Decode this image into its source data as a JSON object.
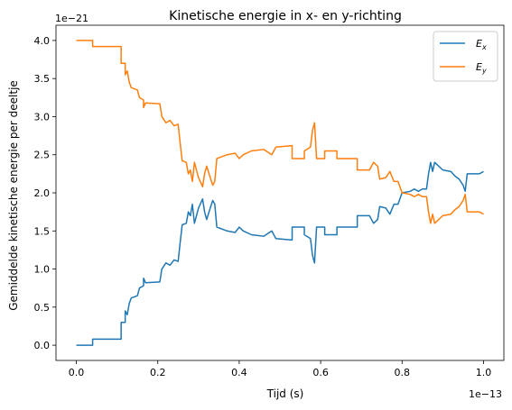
{
  "chart_data": {
    "type": "line",
    "title": "Kinetische energie in x- en y-richting",
    "xlabel": "Tijd (s)",
    "ylabel": "Gemiddelde kinetische energie per deeltje",
    "x_offset_label": "1e−13",
    "y_offset_label": "1e−21",
    "x_scale": 1e-13,
    "y_scale": 1e-21,
    "xlim": [
      -0.05,
      1.05
    ],
    "ylim": [
      -0.2,
      4.2
    ],
    "x_ticks": [
      0.0,
      0.2,
      0.4,
      0.6,
      0.8,
      1.0
    ],
    "x_tick_labels": [
      "0.0",
      "0.2",
      "0.4",
      "0.6",
      "0.8",
      "1.0"
    ],
    "y_ticks": [
      0.0,
      0.5,
      1.0,
      1.5,
      2.0,
      2.5,
      3.0,
      3.5,
      4.0
    ],
    "y_tick_labels": [
      "0.0",
      "0.5",
      "1.0",
      "1.5",
      "2.0",
      "2.5",
      "3.0",
      "3.5",
      "4.0"
    ],
    "grid": false,
    "legend_position": "top-right",
    "series": [
      {
        "name": "E_x",
        "legend_base": "E",
        "legend_sub": "x",
        "color": "#1f77b4",
        "points": [
          [
            0.0,
            0.0
          ],
          [
            0.04,
            0.0
          ],
          [
            0.04,
            0.08
          ],
          [
            0.11,
            0.08
          ],
          [
            0.11,
            0.3
          ],
          [
            0.12,
            0.3
          ],
          [
            0.12,
            0.45
          ],
          [
            0.125,
            0.4
          ],
          [
            0.13,
            0.55
          ],
          [
            0.135,
            0.62
          ],
          [
            0.15,
            0.65
          ],
          [
            0.155,
            0.75
          ],
          [
            0.165,
            0.78
          ],
          [
            0.165,
            0.88
          ],
          [
            0.17,
            0.82
          ],
          [
            0.205,
            0.83
          ],
          [
            0.21,
            1.0
          ],
          [
            0.22,
            1.08
          ],
          [
            0.23,
            1.05
          ],
          [
            0.24,
            1.12
          ],
          [
            0.25,
            1.1
          ],
          [
            0.255,
            1.35
          ],
          [
            0.26,
            1.58
          ],
          [
            0.27,
            1.6
          ],
          [
            0.275,
            1.75
          ],
          [
            0.28,
            1.7
          ],
          [
            0.285,
            1.85
          ],
          [
            0.29,
            1.6
          ],
          [
            0.3,
            1.8
          ],
          [
            0.31,
            1.92
          ],
          [
            0.315,
            1.75
          ],
          [
            0.32,
            1.65
          ],
          [
            0.33,
            1.82
          ],
          [
            0.335,
            1.9
          ],
          [
            0.34,
            1.85
          ],
          [
            0.345,
            1.55
          ],
          [
            0.36,
            1.52
          ],
          [
            0.37,
            1.5
          ],
          [
            0.39,
            1.48
          ],
          [
            0.4,
            1.55
          ],
          [
            0.41,
            1.5
          ],
          [
            0.43,
            1.45
          ],
          [
            0.46,
            1.43
          ],
          [
            0.48,
            1.5
          ],
          [
            0.49,
            1.4
          ],
          [
            0.53,
            1.38
          ],
          [
            0.53,
            1.55
          ],
          [
            0.56,
            1.55
          ],
          [
            0.56,
            1.45
          ],
          [
            0.575,
            1.4
          ],
          [
            0.58,
            1.18
          ],
          [
            0.585,
            1.08
          ],
          [
            0.59,
            1.55
          ],
          [
            0.61,
            1.55
          ],
          [
            0.61,
            1.45
          ],
          [
            0.64,
            1.45
          ],
          [
            0.64,
            1.55
          ],
          [
            0.69,
            1.55
          ],
          [
            0.69,
            1.7
          ],
          [
            0.72,
            1.7
          ],
          [
            0.73,
            1.6
          ],
          [
            0.74,
            1.65
          ],
          [
            0.745,
            1.82
          ],
          [
            0.76,
            1.8
          ],
          [
            0.77,
            1.72
          ],
          [
            0.78,
            1.85
          ],
          [
            0.79,
            1.85
          ],
          [
            0.8,
            2.0
          ],
          [
            0.82,
            2.02
          ],
          [
            0.83,
            2.05
          ],
          [
            0.84,
            2.02
          ],
          [
            0.85,
            2.05
          ],
          [
            0.86,
            2.05
          ],
          [
            0.865,
            2.25
          ],
          [
            0.87,
            2.4
          ],
          [
            0.875,
            2.28
          ],
          [
            0.88,
            2.4
          ],
          [
            0.9,
            2.3
          ],
          [
            0.92,
            2.28
          ],
          [
            0.93,
            2.22
          ],
          [
            0.94,
            2.18
          ],
          [
            0.95,
            2.1
          ],
          [
            0.955,
            2.02
          ],
          [
            0.96,
            2.25
          ],
          [
            0.99,
            2.25
          ],
          [
            1.0,
            2.28
          ]
        ]
      },
      {
        "name": "E_y",
        "legend_base": "E",
        "legend_sub": "y",
        "color": "#ff7f0e",
        "points": [
          [
            0.0,
            4.0
          ],
          [
            0.04,
            4.0
          ],
          [
            0.04,
            3.92
          ],
          [
            0.11,
            3.92
          ],
          [
            0.11,
            3.7
          ],
          [
            0.12,
            3.7
          ],
          [
            0.12,
            3.55
          ],
          [
            0.125,
            3.6
          ],
          [
            0.13,
            3.45
          ],
          [
            0.135,
            3.38
          ],
          [
            0.15,
            3.35
          ],
          [
            0.155,
            3.25
          ],
          [
            0.165,
            3.22
          ],
          [
            0.165,
            3.12
          ],
          [
            0.17,
            3.18
          ],
          [
            0.205,
            3.17
          ],
          [
            0.21,
            3.0
          ],
          [
            0.22,
            2.92
          ],
          [
            0.23,
            2.95
          ],
          [
            0.24,
            2.88
          ],
          [
            0.25,
            2.9
          ],
          [
            0.255,
            2.65
          ],
          [
            0.26,
            2.42
          ],
          [
            0.27,
            2.4
          ],
          [
            0.275,
            2.25
          ],
          [
            0.28,
            2.3
          ],
          [
            0.285,
            2.15
          ],
          [
            0.29,
            2.4
          ],
          [
            0.3,
            2.2
          ],
          [
            0.31,
            2.08
          ],
          [
            0.315,
            2.25
          ],
          [
            0.32,
            2.35
          ],
          [
            0.33,
            2.18
          ],
          [
            0.335,
            2.1
          ],
          [
            0.34,
            2.15
          ],
          [
            0.345,
            2.45
          ],
          [
            0.36,
            2.48
          ],
          [
            0.37,
            2.5
          ],
          [
            0.39,
            2.52
          ],
          [
            0.4,
            2.45
          ],
          [
            0.41,
            2.5
          ],
          [
            0.43,
            2.55
          ],
          [
            0.46,
            2.57
          ],
          [
            0.48,
            2.5
          ],
          [
            0.49,
            2.6
          ],
          [
            0.53,
            2.62
          ],
          [
            0.53,
            2.45
          ],
          [
            0.56,
            2.45
          ],
          [
            0.56,
            2.55
          ],
          [
            0.575,
            2.6
          ],
          [
            0.58,
            2.82
          ],
          [
            0.585,
            2.92
          ],
          [
            0.59,
            2.45
          ],
          [
            0.61,
            2.45
          ],
          [
            0.61,
            2.55
          ],
          [
            0.64,
            2.55
          ],
          [
            0.64,
            2.45
          ],
          [
            0.69,
            2.45
          ],
          [
            0.69,
            2.3
          ],
          [
            0.72,
            2.3
          ],
          [
            0.73,
            2.4
          ],
          [
            0.74,
            2.35
          ],
          [
            0.745,
            2.18
          ],
          [
            0.76,
            2.2
          ],
          [
            0.77,
            2.28
          ],
          [
            0.78,
            2.15
          ],
          [
            0.79,
            2.15
          ],
          [
            0.8,
            2.0
          ],
          [
            0.82,
            1.98
          ],
          [
            0.83,
            1.95
          ],
          [
            0.84,
            1.98
          ],
          [
            0.85,
            1.95
          ],
          [
            0.86,
            1.95
          ],
          [
            0.865,
            1.75
          ],
          [
            0.87,
            1.6
          ],
          [
            0.875,
            1.72
          ],
          [
            0.88,
            1.6
          ],
          [
            0.9,
            1.7
          ],
          [
            0.92,
            1.72
          ],
          [
            0.93,
            1.78
          ],
          [
            0.94,
            1.82
          ],
          [
            0.95,
            1.9
          ],
          [
            0.955,
            1.98
          ],
          [
            0.96,
            1.75
          ],
          [
            0.99,
            1.75
          ],
          [
            1.0,
            1.72
          ]
        ]
      }
    ]
  }
}
